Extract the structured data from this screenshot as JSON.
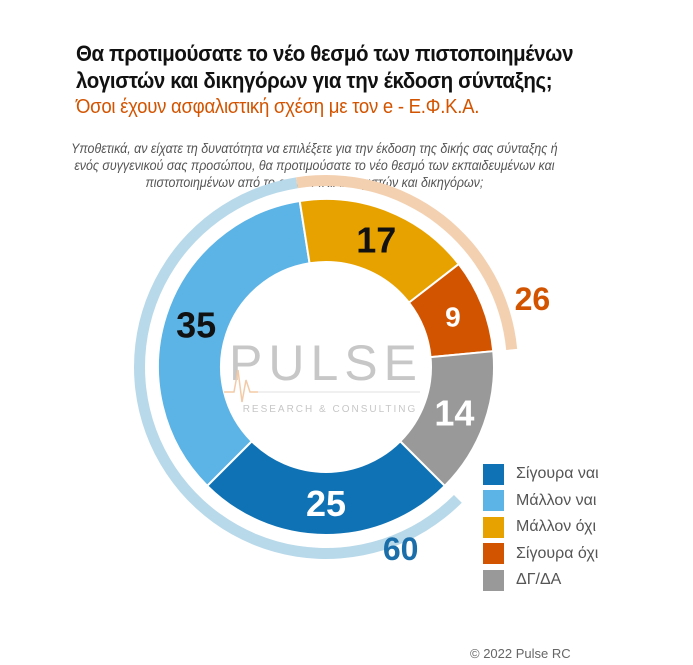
{
  "chart_data": {
    "type": "donut",
    "title": "Θα προτιμούσατε το νέο θεσμό των πιστοποιημένων λογιστών και δικηγόρων για την έκδοση σύνταξης;",
    "subtitle": "Όσοι έχουν ασφαλιστική σχέση με τον e - Ε.Φ.Κ.Α.",
    "question": "Υποθετικά, αν είχατε τη δυνατότητα να επιλέξετε για την έκδοση της δικής σας σύνταξης ή ενός συγγενικού σας προσώπου, θα προτιμούσατε το νέο θεσμό των εκπαιδευμένων και πιστοποιημένων από το e - Ε.Φ.Κ.Α. λογιστών και δικηγόρων;",
    "categories": [
      "Σίγουρα ναι",
      "Μάλλον ναι",
      "Μάλλον όχι",
      "Σίγουρα όχι",
      "ΔΓ/ΔΑ"
    ],
    "values": [
      25,
      35,
      17,
      9,
      14
    ],
    "colors": [
      "#0e72b5",
      "#5bb3e6",
      "#e8a200",
      "#d35400",
      "#999999"
    ],
    "groups": [
      {
        "label": "60",
        "value": 60,
        "from": 0,
        "to": 2,
        "color": "#b8d9ea",
        "text_color": "#1a6faa"
      },
      {
        "label": "26",
        "value": 26,
        "from": 2,
        "to": 4,
        "color": "#f3d0b0",
        "text_color": "#d35400"
      }
    ],
    "legend_position": "bottom-right"
  },
  "watermark": {
    "brand": "PULSE",
    "tagline": "RESEARCH & CONSULTING"
  },
  "footer": {
    "copyright": "© 2022 Pulse RC"
  }
}
